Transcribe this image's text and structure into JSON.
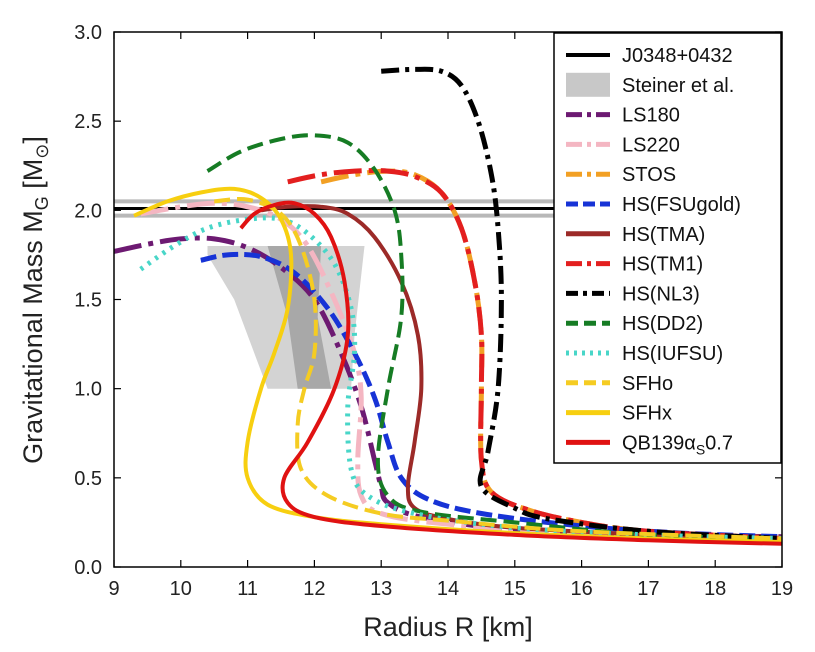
{
  "chart_data": {
    "type": "line",
    "xlabel": "Radius R [km]",
    "ylabel": "Gravitational Mass M",
    "ylabel_sub": "G",
    "ylabel_unit_open": " [M",
    "ylabel_unit_sub": "⊙",
    "ylabel_unit_close": "]",
    "xlim": [
      9,
      19
    ],
    "ylim": [
      0.0,
      3.0
    ],
    "xticks": [
      9,
      10,
      11,
      12,
      13,
      14,
      15,
      16,
      17,
      18,
      19
    ],
    "yticks": [
      0.0,
      0.5,
      1.0,
      1.5,
      2.0,
      2.5,
      3.0
    ],
    "xtick_labels": [
      "9",
      "10",
      "11",
      "12",
      "13",
      "14",
      "15",
      "16",
      "17",
      "18",
      "19"
    ],
    "ytick_labels": [
      "0.0",
      "0.5",
      "1.0",
      "1.5",
      "2.0",
      "2.5",
      "3.0"
    ],
    "legend_position": "top-right",
    "observation": {
      "name": "J0348+0432",
      "mass": 2.01,
      "band": [
        1.97,
        2.05
      ],
      "color": "#000000",
      "band_color": "#b8b8b8"
    },
    "steiner": {
      "name": "Steiner et al.",
      "outer": [
        [
          10.4,
          1.8
        ],
        [
          12.75,
          1.8
        ],
        [
          12.6,
          1.3
        ],
        [
          12.55,
          1.0
        ],
        [
          11.3,
          1.0
        ],
        [
          10.8,
          1.5
        ],
        [
          10.4,
          1.75
        ]
      ],
      "inner": [
        [
          11.3,
          1.8
        ],
        [
          12.1,
          1.8
        ],
        [
          12.05,
          1.4
        ],
        [
          12.25,
          1.0
        ],
        [
          11.75,
          1.0
        ],
        [
          11.6,
          1.4
        ]
      ],
      "outer_color": "#d3d3d3",
      "inner_color": "#a8a8a8"
    },
    "series": [
      {
        "name": "LS180",
        "color": "#6d1a72",
        "dash": "28,7,5,7",
        "width": 5,
        "points": [
          [
            9.0,
            1.77
          ],
          [
            9.5,
            1.81
          ],
          [
            10.0,
            1.84
          ],
          [
            10.5,
            1.84
          ],
          [
            11.0,
            1.79
          ],
          [
            11.5,
            1.68
          ],
          [
            12.0,
            1.5
          ],
          [
            12.4,
            1.2
          ],
          [
            12.7,
            0.9
          ],
          [
            12.9,
            0.6
          ],
          [
            13.0,
            0.45
          ],
          [
            13.1,
            0.36
          ],
          [
            13.6,
            0.28
          ],
          [
            15,
            0.21
          ],
          [
            17,
            0.18
          ],
          [
            19,
            0.17
          ]
        ]
      },
      {
        "name": "LS220",
        "color": "#f4b6c2",
        "dash": "28,7,5,7",
        "width": 5,
        "points": [
          [
            9.4,
            1.98
          ],
          [
            10.0,
            2.02
          ],
          [
            10.5,
            2.04
          ],
          [
            11.0,
            2.02
          ],
          [
            11.5,
            1.95
          ],
          [
            11.9,
            1.8
          ],
          [
            12.3,
            1.5
          ],
          [
            12.6,
            1.2
          ],
          [
            12.7,
            0.95
          ],
          [
            12.65,
            0.6
          ],
          [
            12.7,
            0.4
          ],
          [
            13.0,
            0.3
          ],
          [
            14,
            0.24
          ],
          [
            16,
            0.19
          ],
          [
            19,
            0.16
          ]
        ]
      },
      {
        "name": "STOS",
        "color": "#f2a024",
        "dash": "28,7,5,7",
        "width": 5,
        "points": [
          [
            12.1,
            2.16
          ],
          [
            12.6,
            2.2
          ],
          [
            13.1,
            2.22
          ],
          [
            13.5,
            2.2
          ],
          [
            13.9,
            2.1
          ],
          [
            14.2,
            1.9
          ],
          [
            14.4,
            1.6
          ],
          [
            14.5,
            1.3
          ],
          [
            14.5,
            1.0
          ],
          [
            14.5,
            0.6
          ],
          [
            14.65,
            0.42
          ],
          [
            15.2,
            0.32
          ],
          [
            16,
            0.25
          ],
          [
            17,
            0.2
          ],
          [
            19,
            0.16
          ]
        ]
      },
      {
        "name": "HS(FSUgold)",
        "color": "#1733d6",
        "dash": "16,6",
        "width": 5,
        "points": [
          [
            10.3,
            1.72
          ],
          [
            10.7,
            1.75
          ],
          [
            11.2,
            1.74
          ],
          [
            11.7,
            1.65
          ],
          [
            12.2,
            1.45
          ],
          [
            12.6,
            1.2
          ],
          [
            12.9,
            0.95
          ],
          [
            13.1,
            0.7
          ],
          [
            13.3,
            0.5
          ],
          [
            13.7,
            0.38
          ],
          [
            14.5,
            0.3
          ],
          [
            16,
            0.23
          ],
          [
            17.5,
            0.19
          ],
          [
            19,
            0.17
          ]
        ]
      },
      {
        "name": "HS(TMA)",
        "color": "#9c2a28",
        "dash": "",
        "width": 4,
        "points": [
          [
            11.2,
            2.0
          ],
          [
            11.6,
            2.02
          ],
          [
            12.1,
            2.02
          ],
          [
            12.5,
            1.98
          ],
          [
            12.9,
            1.85
          ],
          [
            13.3,
            1.6
          ],
          [
            13.55,
            1.3
          ],
          [
            13.6,
            1.0
          ],
          [
            13.5,
            0.7
          ],
          [
            13.4,
            0.45
          ],
          [
            13.5,
            0.33
          ],
          [
            14,
            0.27
          ],
          [
            15,
            0.22
          ],
          [
            17,
            0.18
          ],
          [
            19,
            0.15
          ]
        ]
      },
      {
        "name": "HS(TM1)",
        "color": "#e31f1f",
        "dash": "28,7,5,7",
        "width": 5,
        "points": [
          [
            11.6,
            2.16
          ],
          [
            12.1,
            2.2
          ],
          [
            12.6,
            2.22
          ],
          [
            13.1,
            2.22
          ],
          [
            13.5,
            2.19
          ],
          [
            13.9,
            2.1
          ],
          [
            14.2,
            1.9
          ],
          [
            14.4,
            1.6
          ],
          [
            14.5,
            1.3
          ],
          [
            14.5,
            1.0
          ],
          [
            14.5,
            0.6
          ],
          [
            14.65,
            0.42
          ],
          [
            15.2,
            0.32
          ],
          [
            16,
            0.25
          ],
          [
            17,
            0.2
          ],
          [
            19,
            0.16
          ]
        ]
      },
      {
        "name": "HS(NL3)",
        "color": "#000000",
        "dash": "18,6,4,6",
        "width": 5,
        "points": [
          [
            13.0,
            2.78
          ],
          [
            13.5,
            2.79
          ],
          [
            13.9,
            2.78
          ],
          [
            14.2,
            2.7
          ],
          [
            14.45,
            2.5
          ],
          [
            14.65,
            2.2
          ],
          [
            14.75,
            1.9
          ],
          [
            14.8,
            1.5
          ],
          [
            14.75,
            1.0
          ],
          [
            14.6,
            0.65
          ],
          [
            14.5,
            0.45
          ],
          [
            15,
            0.33
          ],
          [
            15.5,
            0.27
          ],
          [
            17,
            0.2
          ],
          [
            19,
            0.16
          ]
        ]
      },
      {
        "name": "HS(DD2)",
        "color": "#167c24",
        "dash": "16,7",
        "width": 4,
        "points": [
          [
            10.4,
            2.22
          ],
          [
            10.9,
            2.33
          ],
          [
            11.5,
            2.4
          ],
          [
            12.0,
            2.42
          ],
          [
            12.5,
            2.38
          ],
          [
            12.9,
            2.23
          ],
          [
            13.2,
            2.0
          ],
          [
            13.3,
            1.75
          ],
          [
            13.3,
            1.4
          ],
          [
            13.1,
            1.0
          ],
          [
            12.95,
            0.6
          ],
          [
            13.1,
            0.4
          ],
          [
            13.6,
            0.31
          ],
          [
            15,
            0.25
          ],
          [
            17,
            0.18
          ],
          [
            19,
            0.16
          ]
        ]
      },
      {
        "name": "HS(IUFSU)",
        "color": "#48d6c8",
        "dash": "3,6",
        "width": 5,
        "points": [
          [
            9.4,
            1.67
          ],
          [
            9.9,
            1.8
          ],
          [
            10.4,
            1.9
          ],
          [
            11.0,
            1.95
          ],
          [
            11.5,
            1.95
          ],
          [
            11.9,
            1.87
          ],
          [
            12.3,
            1.7
          ],
          [
            12.55,
            1.45
          ],
          [
            12.6,
            1.2
          ],
          [
            12.5,
            0.9
          ],
          [
            12.55,
            0.55
          ],
          [
            12.8,
            0.4
          ],
          [
            13.5,
            0.3
          ],
          [
            15,
            0.22
          ],
          [
            17,
            0.18
          ],
          [
            19,
            0.16
          ]
        ]
      },
      {
        "name": "SFHo",
        "color": "#f5cc22",
        "dash": "16,7",
        "width": 4,
        "points": [
          [
            10.5,
            2.05
          ],
          [
            11.0,
            2.06
          ],
          [
            11.5,
            1.98
          ],
          [
            11.8,
            1.8
          ],
          [
            12.0,
            1.5
          ],
          [
            12.0,
            1.2
          ],
          [
            11.85,
            1.0
          ],
          [
            11.75,
            0.8
          ],
          [
            11.8,
            0.55
          ],
          [
            12.2,
            0.4
          ],
          [
            13,
            0.3
          ],
          [
            14,
            0.26
          ],
          [
            16,
            0.2
          ],
          [
            19,
            0.16
          ]
        ]
      },
      {
        "name": "SFHx",
        "color": "#f7cf10",
        "dash": "",
        "width": 4,
        "points": [
          [
            9.3,
            1.97
          ],
          [
            9.8,
            2.05
          ],
          [
            10.3,
            2.1
          ],
          [
            10.8,
            2.12
          ],
          [
            11.2,
            2.07
          ],
          [
            11.5,
            1.95
          ],
          [
            11.65,
            1.75
          ],
          [
            11.6,
            1.45
          ],
          [
            11.4,
            1.2
          ],
          [
            11.2,
            1.0
          ],
          [
            11.0,
            0.7
          ],
          [
            11.0,
            0.5
          ],
          [
            11.3,
            0.35
          ],
          [
            12,
            0.28
          ],
          [
            13,
            0.24
          ],
          [
            15,
            0.19
          ],
          [
            17,
            0.16
          ],
          [
            19,
            0.14
          ]
        ]
      },
      {
        "name": "QB139αS0.7",
        "color": "#e01212",
        "dash": "",
        "width": 4,
        "points": [
          [
            10.9,
            1.9
          ],
          [
            11.1,
            1.98
          ],
          [
            11.4,
            2.03
          ],
          [
            11.7,
            2.04
          ],
          [
            12.0,
            1.98
          ],
          [
            12.25,
            1.85
          ],
          [
            12.45,
            1.6
          ],
          [
            12.5,
            1.3
          ],
          [
            12.3,
            1.0
          ],
          [
            11.9,
            0.7
          ],
          [
            11.55,
            0.5
          ],
          [
            11.6,
            0.36
          ],
          [
            12,
            0.28
          ],
          [
            13,
            0.23
          ],
          [
            15,
            0.18
          ],
          [
            17,
            0.15
          ],
          [
            19,
            0.13
          ]
        ]
      }
    ],
    "legend": [
      {
        "label": "J0348+0432",
        "color": "#000000",
        "dash": "",
        "kind": "line",
        "width": 4
      },
      {
        "label": "Steiner et al.",
        "color": "#c8c8c8",
        "kind": "box"
      },
      {
        "label": "LS180",
        "color": "#6d1a72",
        "dash": "16,5,4,5",
        "kind": "line",
        "width": 5
      },
      {
        "label": "LS220",
        "color": "#f4b6c2",
        "dash": "16,5,4,5",
        "kind": "line",
        "width": 5
      },
      {
        "label": "STOS",
        "color": "#f2a024",
        "dash": "16,5,4,5",
        "kind": "line",
        "width": 5
      },
      {
        "label": "HS(FSUgold)",
        "color": "#1733d6",
        "dash": "12,5",
        "kind": "line",
        "width": 5
      },
      {
        "label": "HS(TMA)",
        "color": "#9c2a28",
        "dash": "",
        "kind": "line",
        "width": 5
      },
      {
        "label": "HS(TM1)",
        "color": "#e31f1f",
        "dash": "16,5,4,5",
        "kind": "line",
        "width": 5
      },
      {
        "label": "HS(NL3)",
        "color": "#000000",
        "dash": "12,5,4,5",
        "kind": "line",
        "width": 5
      },
      {
        "label": "HS(DD2)",
        "color": "#167c24",
        "dash": "12,6",
        "kind": "line",
        "width": 5
      },
      {
        "label": "HS(IUFSU)",
        "color": "#48d6c8",
        "dash": "3,5",
        "kind": "line",
        "width": 5
      },
      {
        "label": "SFHo",
        "color": "#f5cc22",
        "dash": "12,6",
        "kind": "line",
        "width": 5
      },
      {
        "label": "SFHx",
        "color": "#f7cf10",
        "dash": "",
        "kind": "line",
        "width": 5
      },
      {
        "label": "QB139",
        "label_alpha": "α",
        "label_sub": "S",
        "label_tail": "0.7",
        "color": "#e01212",
        "dash": "",
        "kind": "line",
        "width": 5
      }
    ]
  }
}
